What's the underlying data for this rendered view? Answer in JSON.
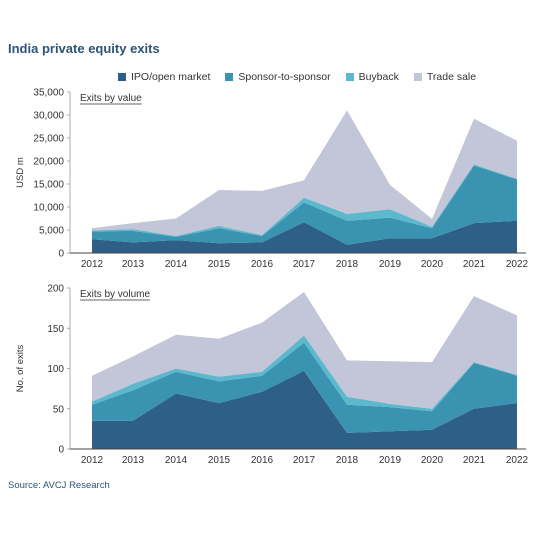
{
  "title": "India private equity exits",
  "source": "Source: AVCJ Research",
  "legend": [
    {
      "label": "IPO/open market",
      "color": "#2e5f87"
    },
    {
      "label": "Sponsor-to-sponsor",
      "color": "#3a93b0"
    },
    {
      "label": "Buyback",
      "color": "#5cb8cc"
    },
    {
      "label": "Trade sale",
      "color": "#c3c5d8"
    }
  ],
  "chart_data": [
    {
      "type": "area",
      "stacked": true,
      "subtitle": "Exits by value",
      "ylabel": "USD m",
      "ylim": [
        0,
        35000
      ],
      "yticks": [
        0,
        5000,
        10000,
        15000,
        20000,
        25000,
        30000,
        35000
      ],
      "ytick_labels": [
        "0",
        "5,000",
        "10,000",
        "15,000",
        "20,000",
        "25,000",
        "30,000",
        "35,000"
      ],
      "x": [
        "2012",
        "2013",
        "2014",
        "2015",
        "2016",
        "2017",
        "2018",
        "2019",
        "2020",
        "2021",
        "2022"
      ],
      "series": [
        {
          "name": "IPO/open market",
          "color": "#2e5f87",
          "values": [
            3000,
            2300,
            2800,
            2100,
            2300,
            6700,
            1800,
            3200,
            3200,
            6500,
            7000
          ]
        },
        {
          "name": "Sponsor-to-sponsor",
          "color": "#3a93b0",
          "values": [
            1700,
            2500,
            700,
            3300,
            1400,
            4300,
            5200,
            4500,
            2200,
            12500,
            9000
          ]
        },
        {
          "name": "Buyback",
          "color": "#5cb8cc",
          "values": [
            200,
            400,
            200,
            500,
            200,
            1000,
            1500,
            1800,
            300,
            300,
            100
          ]
        },
        {
          "name": "Trade sale",
          "color": "#c3c5d8",
          "values": [
            500,
            1300,
            3800,
            7800,
            9600,
            3800,
            22500,
            5300,
            1700,
            9900,
            8300
          ]
        }
      ]
    },
    {
      "type": "area",
      "stacked": true,
      "subtitle": "Exits by volume",
      "ylabel": "No. of exits",
      "ylim": [
        0,
        200
      ],
      "yticks": [
        0,
        50,
        100,
        150,
        200
      ],
      "ytick_labels": [
        "0",
        "50",
        "100",
        "150",
        "200"
      ],
      "x": [
        "2012",
        "2013",
        "2014",
        "2015",
        "2016",
        "2017",
        "2018",
        "2019",
        "2020",
        "2021",
        "2022"
      ],
      "series": [
        {
          "name": "IPO/open market",
          "color": "#2e5f87",
          "values": [
            35,
            35,
            69,
            57,
            71,
            97,
            20,
            22,
            24,
            50,
            57
          ]
        },
        {
          "name": "Sponsor-to-sponsor",
          "color": "#3a93b0",
          "values": [
            20,
            38,
            27,
            27,
            20,
            35,
            35,
            30,
            23,
            57,
            34
          ]
        },
        {
          "name": "Buyback",
          "color": "#5cb8cc",
          "values": [
            4,
            8,
            4,
            6,
            5,
            9,
            10,
            4,
            3,
            1,
            1
          ]
        },
        {
          "name": "Trade sale",
          "color": "#c3c5d8",
          "values": [
            32,
            34,
            42,
            47,
            61,
            54,
            45,
            53,
            58,
            82,
            74
          ]
        }
      ]
    }
  ]
}
